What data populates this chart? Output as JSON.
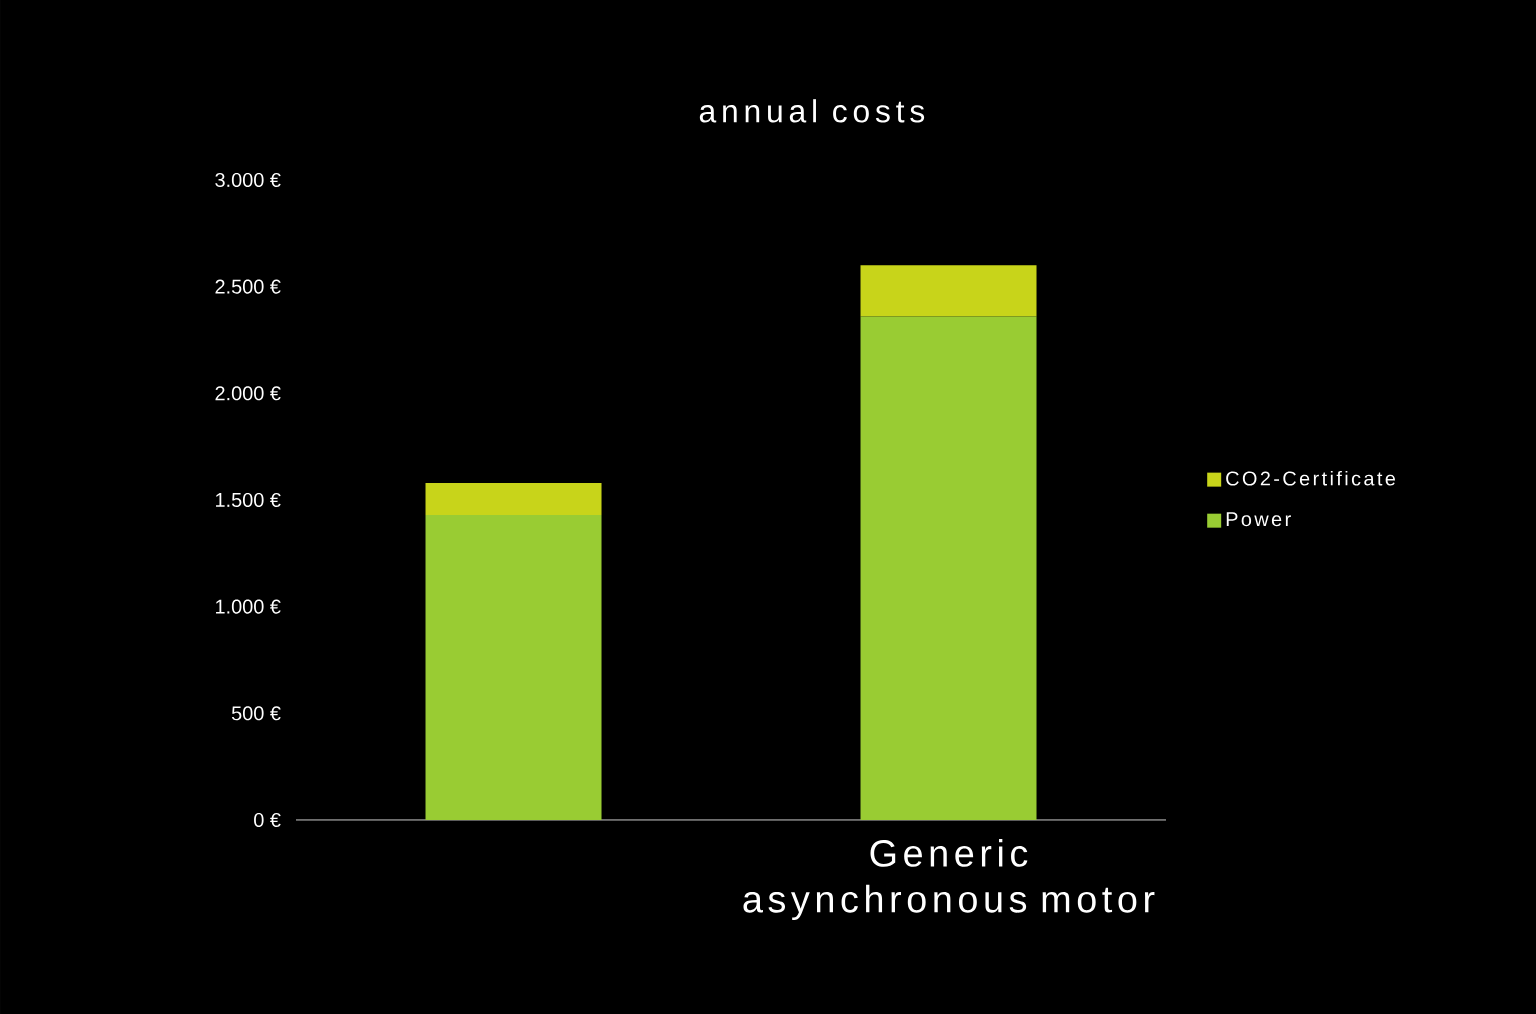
{
  "chart_data": {
    "type": "bar",
    "title": "annual costs",
    "stacked": true,
    "categories": [
      null,
      "Generic asynchronous motor"
    ],
    "series": [
      {
        "name": "Power",
        "color": "#99cc33",
        "values": [
          1430,
          2360
        ]
      },
      {
        "name": "CO2-Certificate",
        "color": "#c8d41a",
        "values": [
          150,
          240
        ]
      }
    ],
    "ylim": [
      0,
      3000
    ],
    "yticks": [
      {
        "value": 0,
        "label": "0 €"
      },
      {
        "value": 500,
        "label": "500 €"
      },
      {
        "value": 1000,
        "label": "1.000 €"
      },
      {
        "value": 1500,
        "label": "1.500 €"
      },
      {
        "value": 2000,
        "label": "2.000 €"
      },
      {
        "value": 2500,
        "label": "2.500 €"
      },
      {
        "value": 3000,
        "label": "3.000 €"
      }
    ],
    "legend": "right"
  }
}
